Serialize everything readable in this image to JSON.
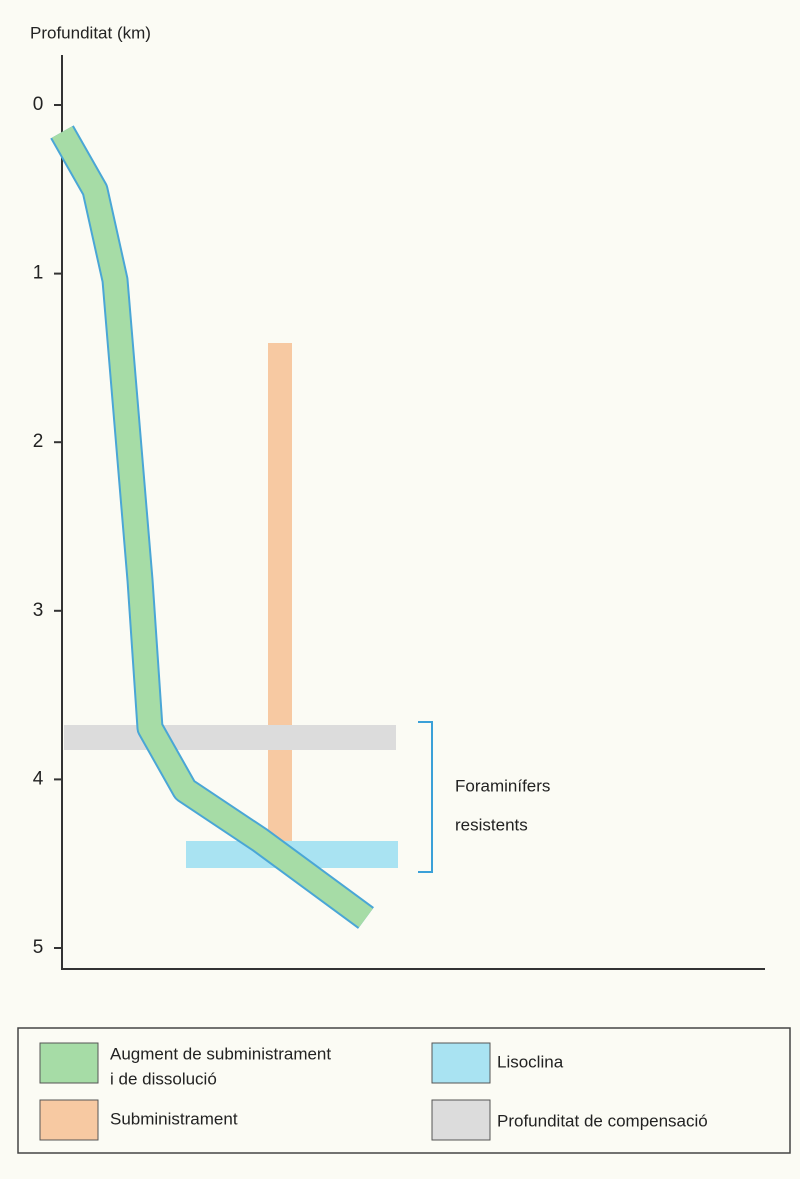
{
  "axis": {
    "label": "Profunditat (km)",
    "lim": [
      0,
      5
    ],
    "ticks": [
      0,
      1,
      2,
      3,
      4,
      5
    ]
  },
  "annotation": {
    "lines": [
      "Foraminífers",
      "resistents"
    ]
  },
  "legend": {
    "items": [
      {
        "lines": [
          "Augment de subministrament",
          "i de dissolució"
        ],
        "color": "#a6dca6"
      },
      {
        "lines": [
          "Subministrament"
        ],
        "color": "#f7c9a2"
      },
      {
        "lines": [
          "Lisoclina"
        ],
        "color": "#a9e3f2"
      },
      {
        "lines": [
          "Profunditat de compensació"
        ],
        "color": "#dcdcdc"
      }
    ]
  }
}
